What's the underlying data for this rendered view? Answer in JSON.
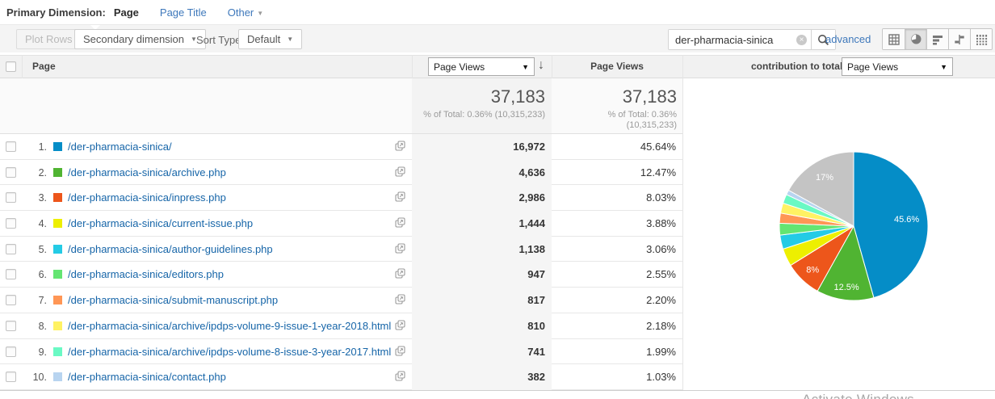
{
  "primary_dimension": {
    "label": "Primary Dimension:",
    "options": [
      {
        "label": "Page",
        "selected": true
      },
      {
        "label": "Page Title",
        "selected": false
      },
      {
        "label": "Other",
        "selected": false,
        "has_dropdown": true
      }
    ]
  },
  "toolbar": {
    "plot_rows_label": "Plot Rows",
    "secondary_dimension_label": "Secondary dimension",
    "sort_type_label": "Sort Type:",
    "sort_type_value": "Default",
    "search": {
      "value": "der-pharmacia-sinica"
    },
    "advanced_label": "advanced",
    "view_modes": [
      "table-view",
      "percentage-view",
      "performance-view",
      "comparison-view",
      "pivot-view"
    ],
    "active_view_mode": "percentage-view"
  },
  "table": {
    "page_header": "Page",
    "metric_select_value": "Page Views",
    "metric_column_header": "Page Views",
    "contribution_label": "contribution to total:",
    "contribution_select_value": "Page Views",
    "totals": {
      "views_value": "37,183",
      "pct_of_total": "% of Total: 0.36%",
      "grand_total": "(10,315,233)"
    },
    "rows": [
      {
        "rank": "1.",
        "color": "#058DC7",
        "page": "/der-pharmacia-sinica/",
        "views": "16,972",
        "pct": "45.64%"
      },
      {
        "rank": "2.",
        "color": "#50B432",
        "page": "/der-pharmacia-sinica/archive.php",
        "views": "4,636",
        "pct": "12.47%"
      },
      {
        "rank": "3.",
        "color": "#ED561B",
        "page": "/der-pharmacia-sinica/inpress.php",
        "views": "2,986",
        "pct": "8.03%"
      },
      {
        "rank": "4.",
        "color": "#EDEF00",
        "page": "/der-pharmacia-sinica/current-issue.php",
        "views": "1,444",
        "pct": "3.88%"
      },
      {
        "rank": "5.",
        "color": "#24CBE5",
        "page": "/der-pharmacia-sinica/author-guidelines.php",
        "views": "1,138",
        "pct": "3.06%"
      },
      {
        "rank": "6.",
        "color": "#64E572",
        "page": "/der-pharmacia-sinica/editors.php",
        "views": "947",
        "pct": "2.55%"
      },
      {
        "rank": "7.",
        "color": "#FF9655",
        "page": "/der-pharmacia-sinica/submit-manuscript.php",
        "views": "817",
        "pct": "2.20%"
      },
      {
        "rank": "8.",
        "color": "#FFF263",
        "page": "/der-pharmacia-sinica/archive/ipdps-volume-9-issue-1-year-2018.html",
        "views": "810",
        "pct": "2.18%"
      },
      {
        "rank": "9.",
        "color": "#6AF9C4",
        "page": "/der-pharmacia-sinica/archive/ipdps-volume-8-issue-3-year-2017.html",
        "views": "741",
        "pct": "1.99%"
      },
      {
        "rank": "10.",
        "color": "#B8D4F0",
        "page": "/der-pharmacia-sinica/contact.php",
        "views": "382",
        "pct": "1.03%"
      }
    ]
  },
  "chart_data": {
    "type": "pie",
    "title": "contribution to total: Page Views",
    "legend_position": "none",
    "slices": [
      {
        "category": "/der-pharmacia-sinica/",
        "value": 45.64,
        "color": "#058DC7",
        "label": "45.6%",
        "label_r": 0.72
      },
      {
        "category": "/der-pharmacia-sinica/archive.php",
        "value": 12.47,
        "color": "#50B432",
        "label": "12.5%",
        "label_r": 0.82
      },
      {
        "category": "/der-pharmacia-sinica/inpress.php",
        "value": 8.03,
        "color": "#ED561B",
        "label": "8%",
        "label_r": 0.8
      },
      {
        "category": "/der-pharmacia-sinica/current-issue.php",
        "value": 3.88,
        "color": "#EDEF00",
        "label": ""
      },
      {
        "category": "/der-pharmacia-sinica/author-guidelines.php",
        "value": 3.06,
        "color": "#24CBE5",
        "label": ""
      },
      {
        "category": "/der-pharmacia-sinica/editors.php",
        "value": 2.55,
        "color": "#64E572",
        "label": ""
      },
      {
        "category": "/der-pharmacia-sinica/submit-manuscript.php",
        "value": 2.2,
        "color": "#FF9655",
        "label": ""
      },
      {
        "category": "/der-pharmacia-sinica/archive/ipdps-volume-9-issue-1-year-2018.html",
        "value": 2.18,
        "color": "#FFF263",
        "label": ""
      },
      {
        "category": "/der-pharmacia-sinica/archive/ipdps-volume-8-issue-3-year-2017.html",
        "value": 1.99,
        "color": "#6AF9C4",
        "label": ""
      },
      {
        "category": "/der-pharmacia-sinica/contact.php",
        "value": 1.03,
        "color": "#B8D4F0",
        "label": ""
      },
      {
        "category": "Other",
        "value": 16.97,
        "color": "#C4C4C4",
        "label": "17%",
        "label_r": 0.77
      }
    ]
  },
  "watermark": "Activate Windows"
}
